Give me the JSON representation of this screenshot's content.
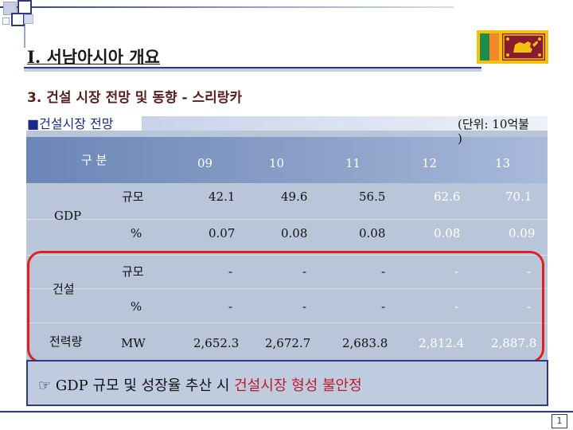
{
  "slide": {
    "title": "I. 서남아시아 개요",
    "subtitle": "3. 건설 시장 전망 및 동향 - 스리랑카",
    "section_bullet": "■",
    "section_label": "건설시장 전망",
    "unit": "(단위: 10억불 )",
    "page_number": "1"
  },
  "table": {
    "header_label": "구 분",
    "years": [
      "09",
      "10",
      "11",
      "12",
      "13"
    ],
    "rows": [
      {
        "group": "GDP",
        "metric": "규모",
        "values": [
          "42.1",
          "49.6",
          "56.5",
          "62.6",
          "70.1"
        ]
      },
      {
        "group": "",
        "metric": "%",
        "values": [
          "0.07",
          "0.08",
          "0.08",
          "0.08",
          "0.09"
        ]
      },
      {
        "group": "건설",
        "metric": "규모",
        "values": [
          "-",
          "-",
          "-",
          "-",
          "-"
        ]
      },
      {
        "group": "",
        "metric": "%",
        "values": [
          "-",
          "-",
          "-",
          "-",
          "-"
        ]
      },
      {
        "group": "전력량",
        "metric": "MW",
        "values": [
          "2,652.3",
          "2,672.7",
          "2,683.8",
          "2,812.4",
          "2,887.8"
        ]
      }
    ]
  },
  "note": {
    "icon": "☞",
    "text_plain": "GDP 규모 및 성장율 추산 시 ",
    "text_highlight": "건설시장 형성 불안정"
  },
  "colors": {
    "header_band": "#7b93c0",
    "table_bg": "#b9c5d8",
    "highlight_border": "#e0201e",
    "note_highlight": "#c0182b",
    "accent": "#2d3a82"
  },
  "icons": [
    "pointing-hand-icon",
    "sri-lanka-flag"
  ]
}
